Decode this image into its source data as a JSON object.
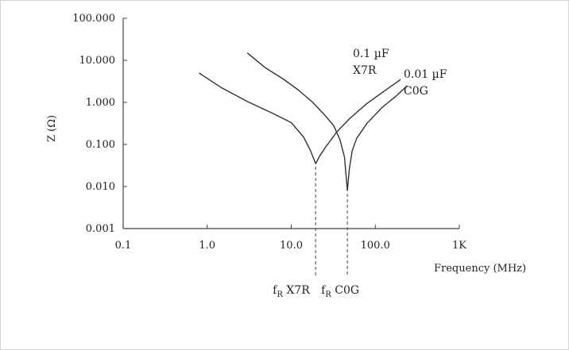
{
  "chart_data": {
    "type": "line",
    "title": "",
    "xlabel": "Frequency (MHz)",
    "ylabel": "Z (Ω)",
    "x_scale": "log",
    "y_scale": "log",
    "xlim": [
      0.1,
      1000
    ],
    "ylim": [
      0.001,
      100
    ],
    "x_ticks": [
      {
        "value": 0.1,
        "label": "0.1"
      },
      {
        "value": 1,
        "label": "1.0"
      },
      {
        "value": 10,
        "label": "10.0"
      },
      {
        "value": 100,
        "label": "100.0"
      },
      {
        "value": 1000,
        "label": "1K"
      }
    ],
    "y_ticks": [
      {
        "value": 0.001,
        "label": "0.001"
      },
      {
        "value": 0.01,
        "label": "0.010"
      },
      {
        "value": 0.1,
        "label": "0.100"
      },
      {
        "value": 1,
        "label": "1.000"
      },
      {
        "value": 10,
        "label": "10.000"
      },
      {
        "value": 100,
        "label": "100.000"
      }
    ],
    "grid": false,
    "series": [
      {
        "name_lines": [
          "0.1 µF",
          "X7R"
        ],
        "x": [
          0.8,
          1.5,
          3,
          6,
          10,
          14,
          17,
          19.5,
          22,
          26,
          35,
          50,
          80,
          130,
          200
        ],
        "y": [
          5.0,
          2.2,
          1.05,
          0.55,
          0.33,
          0.15,
          0.07,
          0.035,
          0.055,
          0.09,
          0.2,
          0.42,
          0.95,
          1.9,
          3.5
        ]
      },
      {
        "name_lines": [
          "0.01 µF",
          "C0G"
        ],
        "x": [
          3,
          5,
          8,
          12,
          18,
          25,
          32,
          38,
          43,
          46.5,
          49,
          53,
          60,
          80,
          120,
          180,
          240
        ],
        "y": [
          15.0,
          6.5,
          3.6,
          2.0,
          1.0,
          0.5,
          0.28,
          0.13,
          0.05,
          0.008,
          0.025,
          0.07,
          0.14,
          0.32,
          0.75,
          1.45,
          2.5
        ]
      }
    ],
    "markers": [
      {
        "x": 19.5,
        "main": "f",
        "sub": "R",
        "suffix": " X7R"
      },
      {
        "x": 46.5,
        "main": "f",
        "sub": "R",
        "suffix": " C0G"
      }
    ]
  }
}
